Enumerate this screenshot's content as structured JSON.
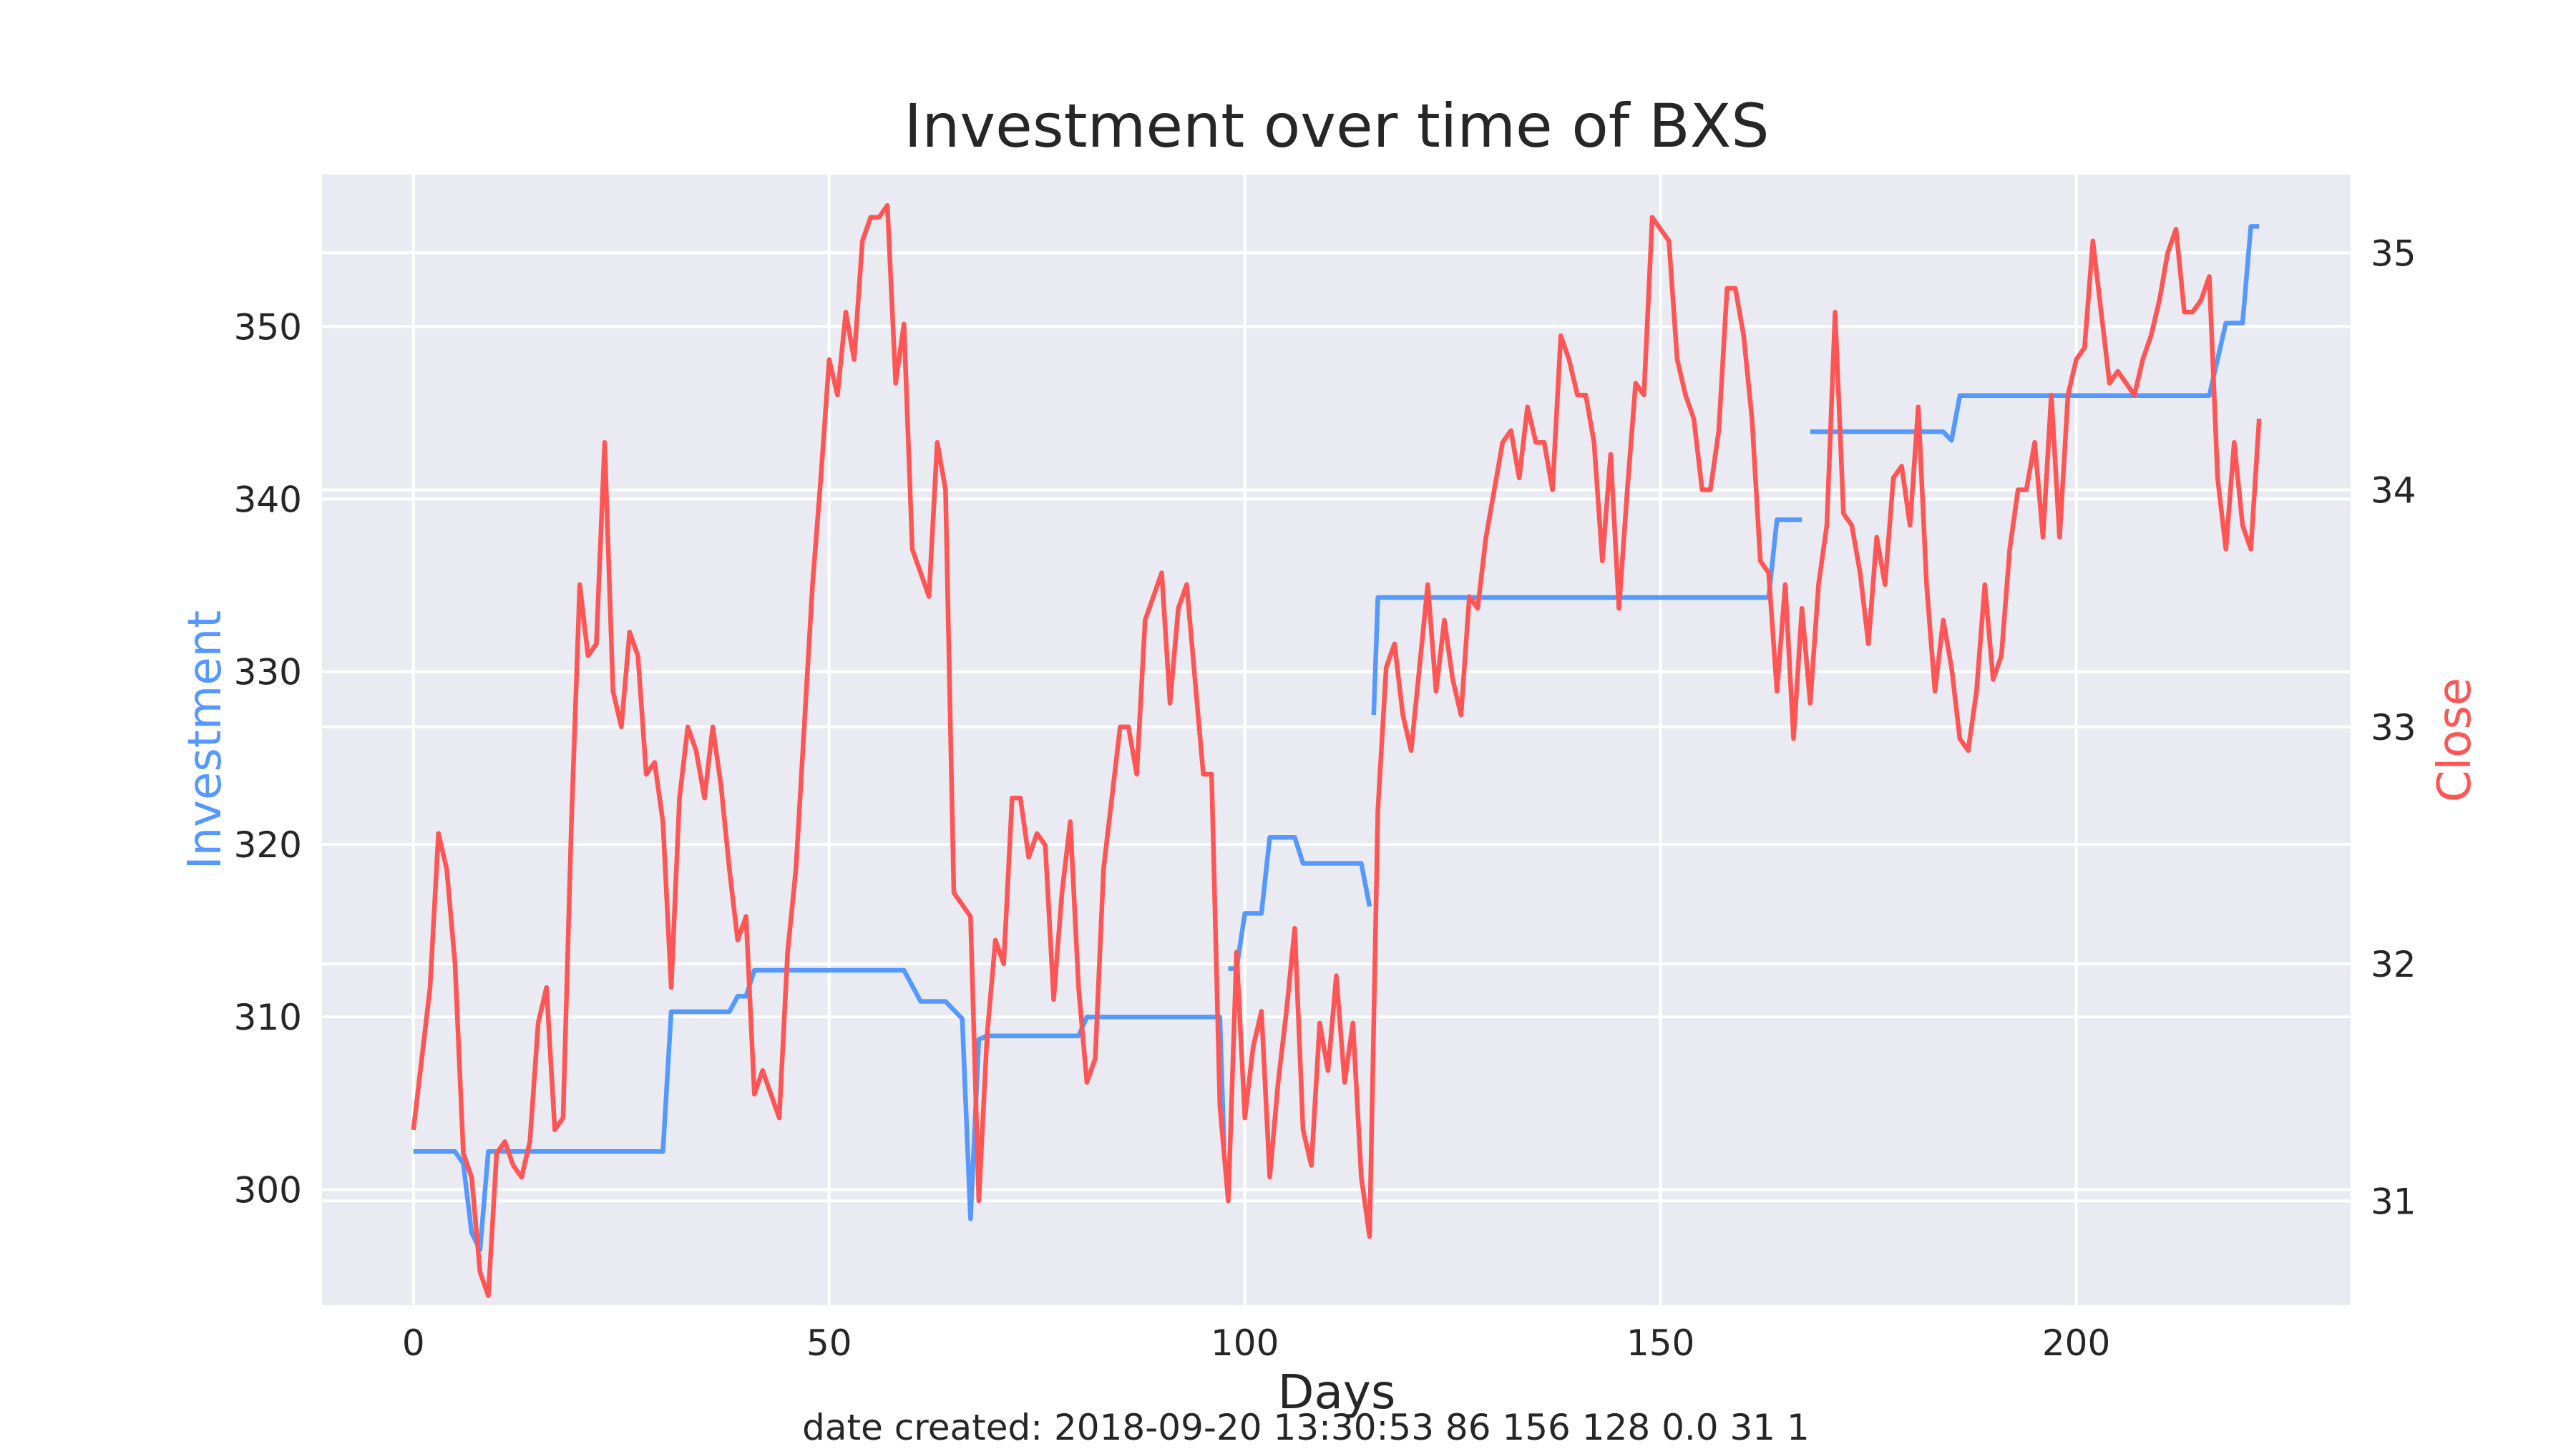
{
  "chart_data": {
    "type": "line",
    "title": "Investment over time of BXS",
    "xlabel": "Days",
    "ylabel_left": "Investment",
    "ylabel_right": "Close",
    "footer": "date created: 2018-09-20 13:30:53 86 156 128 0.0 31 1",
    "xlim": [
      -11,
      233
    ],
    "ylim_left": [
      293.3,
      358.8
    ],
    "ylim_right": [
      30.56,
      35.33
    ],
    "x_ticks": [
      0,
      50,
      100,
      150,
      200
    ],
    "y_ticks_left": [
      300,
      310,
      320,
      330,
      340,
      350
    ],
    "y_ticks_right": [
      31,
      32,
      33,
      34,
      35
    ],
    "grid": true,
    "series": [
      {
        "name": "Investment",
        "axis": "left",
        "color": "#5599ff",
        "points": [
          [
            0,
            302.2
          ],
          [
            5,
            302.2
          ],
          [
            6,
            301.5
          ],
          [
            7,
            297.5
          ],
          [
            8,
            296.5
          ],
          [
            9,
            302.2
          ],
          [
            30,
            302.2
          ],
          [
            31,
            310.3
          ],
          [
            38,
            310.3
          ],
          [
            39,
            311.2
          ],
          [
            40,
            311.2
          ],
          [
            41,
            312.7
          ],
          [
            59,
            312.7
          ],
          [
            61,
            310.9
          ],
          [
            64,
            310.9
          ],
          [
            66,
            309.9
          ],
          [
            67,
            298.3
          ],
          [
            68,
            308.7
          ],
          [
            69,
            308.9
          ],
          [
            80,
            308.9
          ],
          [
            81,
            310.0
          ],
          [
            97,
            310.0
          ],
          [
            97.5,
            302.5
          ],
          [
            98,
            312.8
          ],
          [
            99,
            312.8
          ],
          [
            100,
            316.0
          ],
          [
            102,
            316.0
          ],
          [
            103,
            320.4
          ],
          [
            106,
            320.4
          ],
          [
            107,
            318.9
          ],
          [
            114,
            318.9
          ],
          [
            115,
            316.4
          ],
          [
            115.5,
            327.5
          ],
          [
            116,
            334.3
          ],
          [
            163,
            334.3
          ],
          [
            164,
            338.8
          ],
          [
            167,
            338.8
          ],
          [
            168,
            343.9
          ],
          [
            184,
            343.9
          ],
          [
            185,
            343.4
          ],
          [
            186,
            346.0
          ],
          [
            216,
            346.0
          ],
          [
            218,
            350.2
          ],
          [
            220,
            350.2
          ],
          [
            221,
            355.8
          ],
          [
            222,
            355.8
          ]
        ],
        "gaps": [
          [
            8.5,
            9.5
          ],
          [
            97.6,
            97.9
          ],
          [
            115.2,
            115.6
          ],
          [
            163.5,
            164.2
          ],
          [
            167.4,
            168.2
          ],
          [
            220.5,
            221.2
          ]
        ]
      },
      {
        "name": "Close",
        "axis": "right",
        "color": "#ff5555",
        "points": [
          [
            0,
            31.3
          ],
          [
            1,
            31.6
          ],
          [
            2,
            31.9
          ],
          [
            3,
            32.55
          ],
          [
            4,
            32.4
          ],
          [
            5,
            32.0
          ],
          [
            6,
            31.2
          ],
          [
            7,
            31.1
          ],
          [
            8,
            30.7
          ],
          [
            9,
            30.6
          ],
          [
            10,
            31.2
          ],
          [
            11,
            31.25
          ],
          [
            12,
            31.15
          ],
          [
            13,
            31.1
          ],
          [
            14,
            31.25
          ],
          [
            15,
            31.75
          ],
          [
            16,
            31.9
          ],
          [
            17,
            31.3
          ],
          [
            18,
            31.35
          ],
          [
            19,
            32.6
          ],
          [
            20,
            33.6
          ],
          [
            21,
            33.3
          ],
          [
            22,
            33.35
          ],
          [
            23,
            34.2
          ],
          [
            24,
            33.15
          ],
          [
            25,
            33.0
          ],
          [
            26,
            33.4
          ],
          [
            27,
            33.3
          ],
          [
            28,
            32.8
          ],
          [
            29,
            32.85
          ],
          [
            30,
            32.6
          ],
          [
            31,
            31.9
          ],
          [
            32,
            32.7
          ],
          [
            33,
            33.0
          ],
          [
            34,
            32.9
          ],
          [
            35,
            32.7
          ],
          [
            36,
            33.0
          ],
          [
            37,
            32.75
          ],
          [
            38,
            32.4
          ],
          [
            39,
            32.1
          ],
          [
            40,
            32.2
          ],
          [
            41,
            31.45
          ],
          [
            42,
            31.55
          ],
          [
            43,
            31.45
          ],
          [
            44,
            31.35
          ],
          [
            45,
            32.05
          ],
          [
            46,
            32.4
          ],
          [
            47,
            33.0
          ],
          [
            48,
            33.6
          ],
          [
            49,
            34.05
          ],
          [
            50,
            34.55
          ],
          [
            51,
            34.4
          ],
          [
            52,
            34.75
          ],
          [
            53,
            34.55
          ],
          [
            54,
            35.05
          ],
          [
            55,
            35.15
          ],
          [
            56,
            35.15
          ],
          [
            57,
            35.2
          ],
          [
            58,
            34.45
          ],
          [
            59,
            34.7
          ],
          [
            60,
            33.75
          ],
          [
            61,
            33.65
          ],
          [
            62,
            33.55
          ],
          [
            63,
            34.2
          ],
          [
            64,
            34.0
          ],
          [
            65,
            32.3
          ],
          [
            66,
            32.25
          ],
          [
            67,
            32.2
          ],
          [
            68,
            31.0
          ],
          [
            69,
            31.7
          ],
          [
            70,
            32.1
          ],
          [
            71,
            32.0
          ],
          [
            72,
            32.7
          ],
          [
            73,
            32.7
          ],
          [
            74,
            32.45
          ],
          [
            75,
            32.55
          ],
          [
            76,
            32.5
          ],
          [
            77,
            31.85
          ],
          [
            78,
            32.3
          ],
          [
            79,
            32.6
          ],
          [
            80,
            31.9
          ],
          [
            81,
            31.5
          ],
          [
            82,
            31.6
          ],
          [
            83,
            32.4
          ],
          [
            84,
            32.7
          ],
          [
            85,
            33.0
          ],
          [
            86,
            33.0
          ],
          [
            87,
            32.8
          ],
          [
            88,
            33.45
          ],
          [
            89,
            33.55
          ],
          [
            90,
            33.65
          ],
          [
            91,
            33.1
          ],
          [
            92,
            33.5
          ],
          [
            93,
            33.6
          ],
          [
            94,
            33.2
          ],
          [
            95,
            32.8
          ],
          [
            96,
            32.8
          ],
          [
            97,
            31.4
          ],
          [
            98,
            31.0
          ],
          [
            99,
            32.05
          ],
          [
            100,
            31.35
          ],
          [
            101,
            31.65
          ],
          [
            102,
            31.8
          ],
          [
            103,
            31.1
          ],
          [
            104,
            31.5
          ],
          [
            105,
            31.8
          ],
          [
            106,
            32.15
          ],
          [
            107,
            31.3
          ],
          [
            108,
            31.15
          ],
          [
            109,
            31.75
          ],
          [
            110,
            31.55
          ],
          [
            111,
            31.95
          ],
          [
            112,
            31.5
          ],
          [
            113,
            31.75
          ],
          [
            114,
            31.1
          ],
          [
            115,
            30.85
          ],
          [
            116,
            32.65
          ],
          [
            117,
            33.25
          ],
          [
            118,
            33.35
          ],
          [
            119,
            33.05
          ],
          [
            120,
            32.9
          ],
          [
            121,
            33.25
          ],
          [
            122,
            33.6
          ],
          [
            123,
            33.15
          ],
          [
            124,
            33.45
          ],
          [
            125,
            33.2
          ],
          [
            126,
            33.05
          ],
          [
            127,
            33.55
          ],
          [
            128,
            33.5
          ],
          [
            129,
            33.8
          ],
          [
            130,
            34.0
          ],
          [
            131,
            34.2
          ],
          [
            132,
            34.25
          ],
          [
            133,
            34.05
          ],
          [
            134,
            34.35
          ],
          [
            135,
            34.2
          ],
          [
            136,
            34.2
          ],
          [
            137,
            34.0
          ],
          [
            138,
            34.65
          ],
          [
            139,
            34.55
          ],
          [
            140,
            34.4
          ],
          [
            141,
            34.4
          ],
          [
            142,
            34.2
          ],
          [
            143,
            33.7
          ],
          [
            144,
            34.15
          ],
          [
            145,
            33.5
          ],
          [
            146,
            34.0
          ],
          [
            147,
            34.45
          ],
          [
            148,
            34.4
          ],
          [
            149,
            35.15
          ],
          [
            150,
            35.1
          ],
          [
            151,
            35.05
          ],
          [
            152,
            34.55
          ],
          [
            153,
            34.4
          ],
          [
            154,
            34.3
          ],
          [
            155,
            34.0
          ],
          [
            156,
            34.0
          ],
          [
            157,
            34.25
          ],
          [
            158,
            34.85
          ],
          [
            159,
            34.85
          ],
          [
            160,
            34.65
          ],
          [
            161,
            34.3
          ],
          [
            162,
            33.7
          ],
          [
            163,
            33.65
          ],
          [
            164,
            33.15
          ],
          [
            165,
            33.6
          ],
          [
            166,
            32.95
          ],
          [
            167,
            33.5
          ],
          [
            168,
            33.1
          ],
          [
            169,
            33.6
          ],
          [
            170,
            33.85
          ],
          [
            171,
            34.75
          ],
          [
            172,
            33.9
          ],
          [
            173,
            33.85
          ],
          [
            174,
            33.65
          ],
          [
            175,
            33.35
          ],
          [
            176,
            33.8
          ],
          [
            177,
            33.6
          ],
          [
            178,
            34.05
          ],
          [
            179,
            34.1
          ],
          [
            180,
            33.85
          ],
          [
            181,
            34.35
          ],
          [
            182,
            33.6
          ],
          [
            183,
            33.15
          ],
          [
            184,
            33.45
          ],
          [
            185,
            33.25
          ],
          [
            186,
            32.95
          ],
          [
            187,
            32.9
          ],
          [
            188,
            33.15
          ],
          [
            189,
            33.6
          ],
          [
            190,
            33.2
          ],
          [
            191,
            33.3
          ],
          [
            192,
            33.75
          ],
          [
            193,
            34.0
          ],
          [
            194,
            34.0
          ],
          [
            195,
            34.2
          ],
          [
            196,
            33.8
          ],
          [
            197,
            34.4
          ],
          [
            198,
            33.8
          ],
          [
            199,
            34.4
          ],
          [
            200,
            34.55
          ],
          [
            201,
            34.6
          ],
          [
            202,
            35.05
          ],
          [
            203,
            34.75
          ],
          [
            204,
            34.45
          ],
          [
            205,
            34.5
          ],
          [
            206,
            34.45
          ],
          [
            207,
            34.4
          ],
          [
            208,
            34.55
          ],
          [
            209,
            34.65
          ],
          [
            210,
            34.8
          ],
          [
            211,
            35.0
          ],
          [
            212,
            35.1
          ],
          [
            213,
            34.75
          ],
          [
            214,
            34.75
          ],
          [
            215,
            34.8
          ],
          [
            216,
            34.9
          ],
          [
            217,
            34.05
          ],
          [
            218,
            33.75
          ],
          [
            219,
            34.2
          ],
          [
            220,
            33.85
          ],
          [
            221,
            33.75
          ],
          [
            222,
            34.3
          ]
        ]
      }
    ]
  }
}
